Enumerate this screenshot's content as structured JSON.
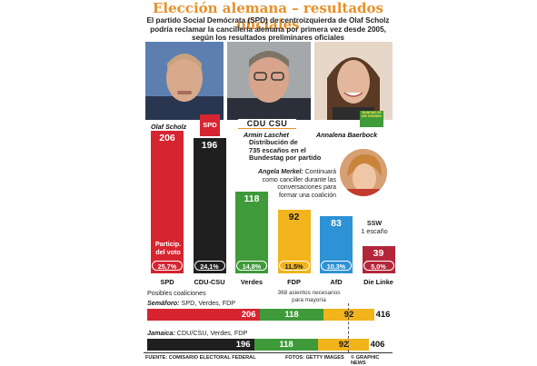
{
  "title": "Elección alemana – resultados oficiales",
  "subtitle_lines": [
    "El partido Social Demócrata (SPD) de centroizquierda de Olaf Scholz",
    "podría reclamar la cancillería alemana por primera vez desde 2005,",
    "según los resultados preliminares oficiales"
  ],
  "candidates": [
    {
      "name": "Olaf Scholz",
      "logo": "SPD"
    },
    {
      "name": "Armin Laschet",
      "logo": "CDU CSU"
    },
    {
      "name": "Annalena Baerbock",
      "logo": "BÜNDNIS 90 DIE GRÜNEN"
    }
  ],
  "distribution_note": [
    "Distribución de",
    "735 escaños en el",
    "Bundestag por partido"
  ],
  "merkel_note": {
    "name": "Angela Merkel:",
    "text": [
      "Continuará",
      "como canciller durante las",
      "conversaciones para",
      "formar una coalición"
    ]
  },
  "vote_share_label": [
    "Particip.",
    "del voto"
  ],
  "ssw_note": [
    "SSW",
    "1 escaño"
  ],
  "chart_data": [
    {
      "type": "bar",
      "categories": [
        "SPD",
        "CDU-CSU",
        "Verdes",
        "FDP",
        "AfD",
        "Die Linke"
      ],
      "values": [
        206,
        196,
        118,
        92,
        83,
        39
      ],
      "vote_share": [
        "25,7%",
        "24,1%",
        "14,8%",
        "11,5%",
        "10,3%",
        "5,0%"
      ],
      "colors": [
        "#d62430",
        "#1f1f1f",
        "#3f9a3a",
        "#f2b41c",
        "#2d92d6",
        "#b3263a"
      ],
      "title": "Distribución de 735 escaños en el Bundestag por partido"
    },
    {
      "type": "bar",
      "orientation": "horizontal-stacked",
      "title": "Posibles coaliciones",
      "majority_note": [
        "368 asientos necesarios",
        "para mayoría"
      ],
      "majority": 368,
      "rows": [
        {
          "name": "Semáforo:",
          "parties": "SPD, Verdes, FDP",
          "segments": [
            206,
            118,
            92
          ],
          "colors": [
            "#d62430",
            "#3f9a3a",
            "#f2b41c"
          ],
          "total": 416
        },
        {
          "name": "Jamaica:",
          "parties": "CDU/CSU, Verdes, FDP",
          "segments": [
            196,
            118,
            92
          ],
          "colors": [
            "#1f1f1f",
            "#3f9a3a",
            "#f2b41c"
          ],
          "total": 406
        }
      ]
    }
  ],
  "footer": {
    "source": "FUENTE: COMISARIO ELECTORAL FEDERAL",
    "photos": "FOTOS: GETTY IMAGES",
    "credit": "© GRAPHIC NEWS"
  }
}
